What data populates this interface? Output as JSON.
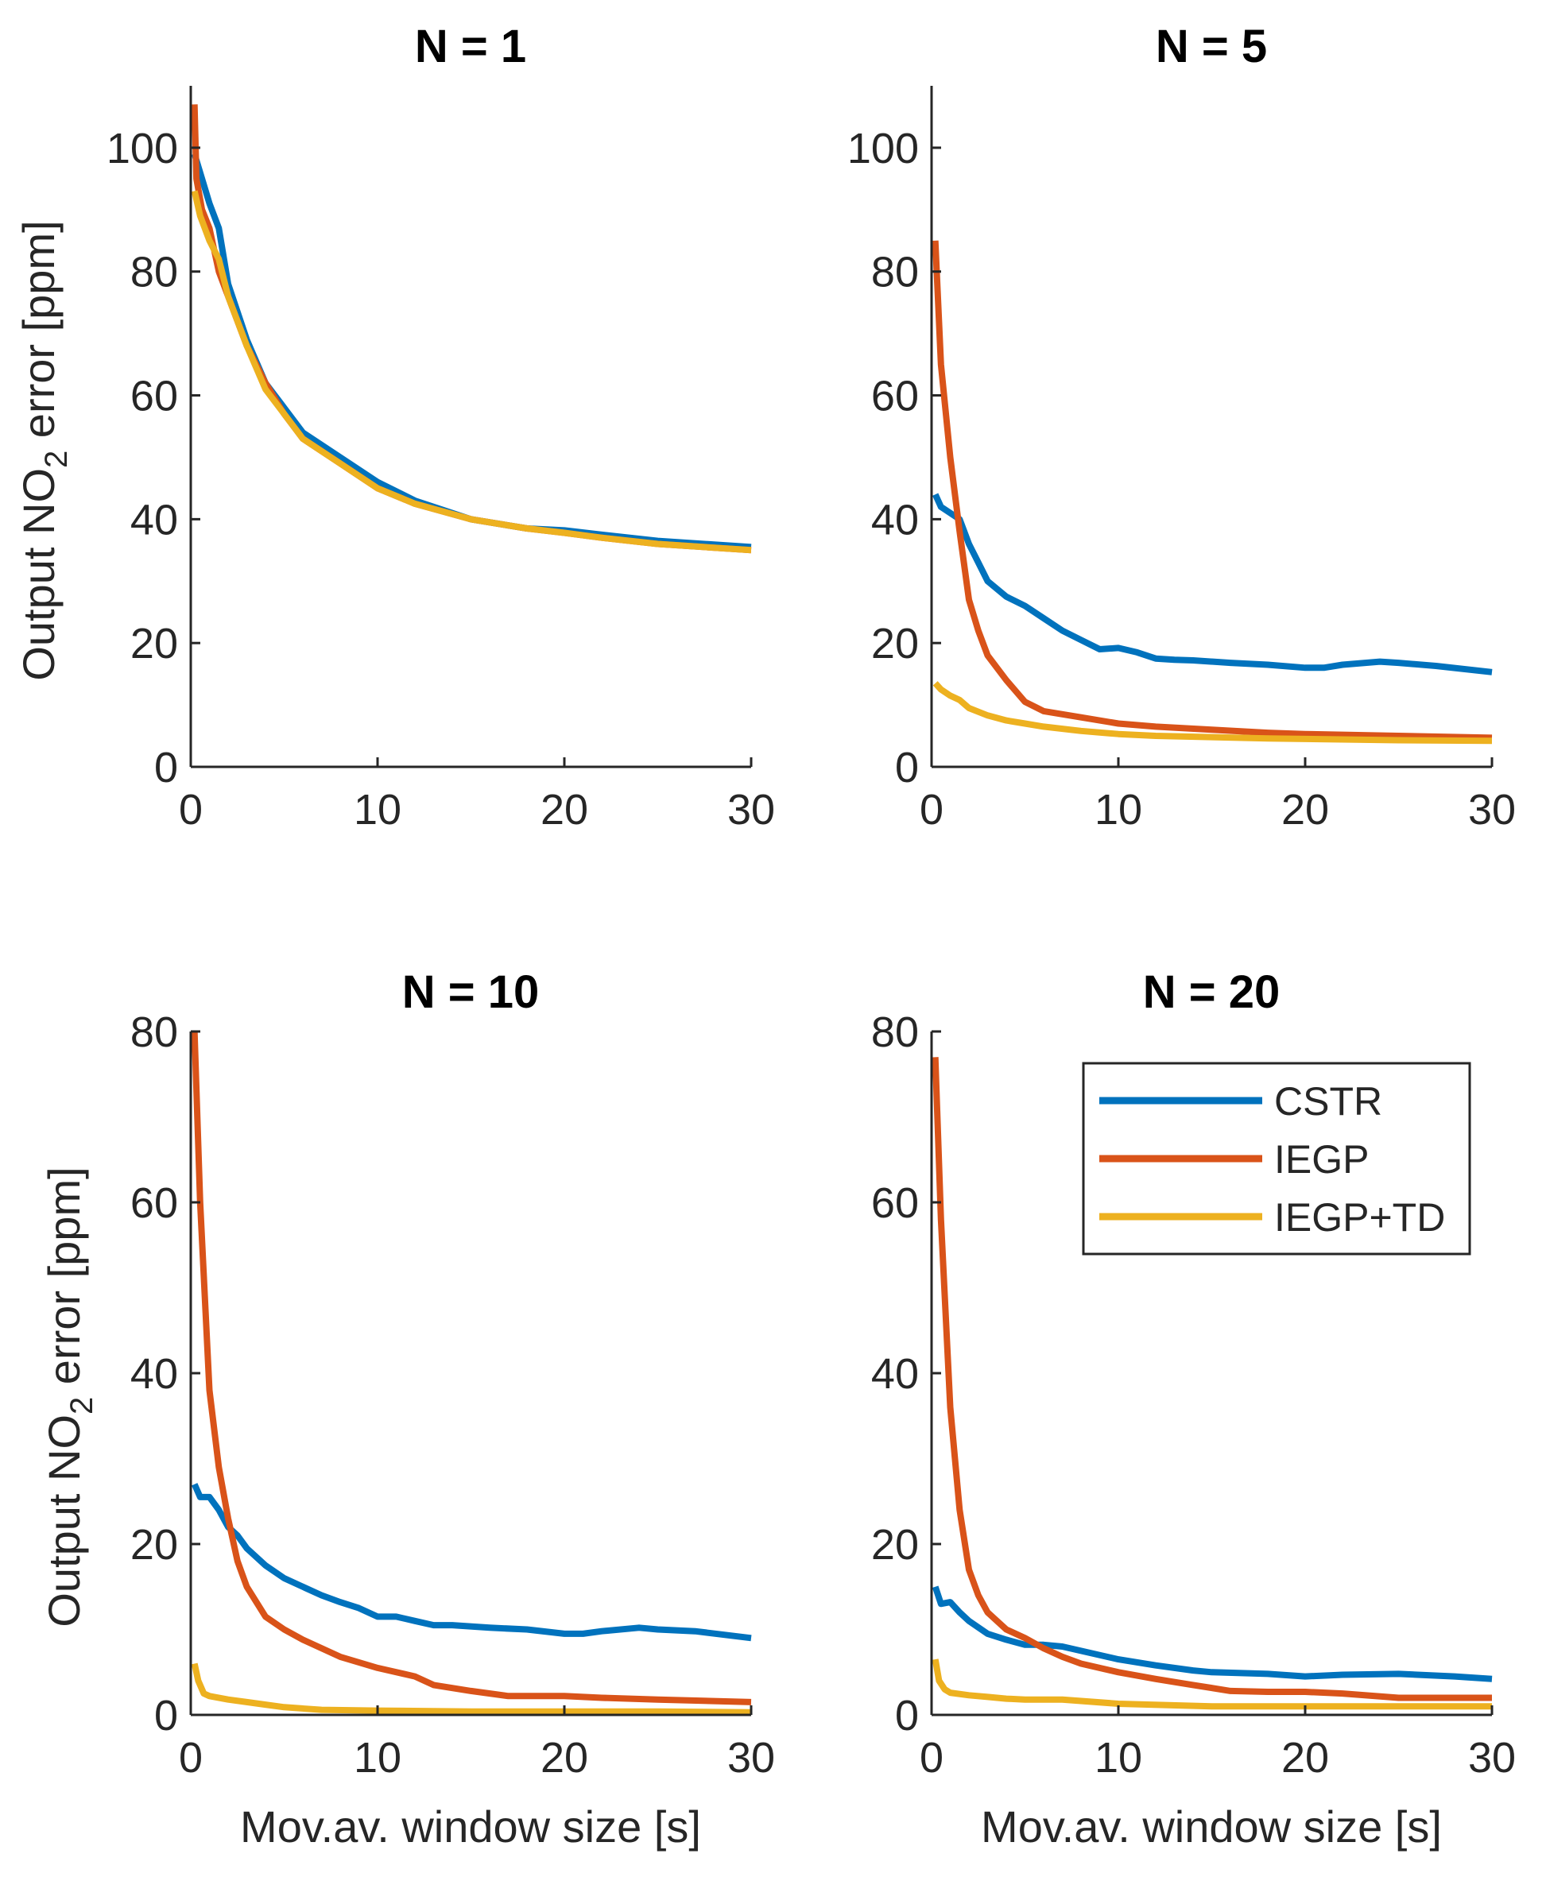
{
  "colors": {
    "CSTR": "#0072BD",
    "IEGP": "#D95319",
    "IEGP+TD": "#EDB120",
    "axis": "#262626"
  },
  "labels": {
    "ylabel_prefix": "Output NO",
    "ylabel_subscript": "2",
    "ylabel_suffix": " error [ppm]",
    "xlabel": "Mov.av. window size [s]"
  },
  "legend": {
    "placement": "top-right of bottom-right panel",
    "entries": [
      "CSTR",
      "IEGP",
      "IEGP+TD"
    ]
  },
  "chart_data": [
    {
      "type": "line",
      "title": "N = 1",
      "xlabel": "",
      "ylabel": "Output NO2 error [ppm]",
      "xlim": [
        0,
        30
      ],
      "ylim": [
        0,
        110
      ],
      "xticks": [
        0,
        10,
        20,
        30
      ],
      "yticks": [
        0,
        20,
        40,
        60,
        80,
        100
      ],
      "grid": false,
      "series": [
        {
          "name": "CSTR",
          "x": [
            0.2,
            1,
            1.5,
            2,
            3,
            4,
            5,
            6,
            8,
            10,
            12,
            15,
            18,
            20,
            22,
            25,
            30
          ],
          "values": [
            99,
            91,
            87,
            78,
            69,
            62,
            58,
            54,
            50,
            46,
            43,
            40,
            38.5,
            38.2,
            37.5,
            36.5,
            35.5
          ]
        },
        {
          "name": "IEGP",
          "x": [
            0.2,
            0.3,
            0.6,
            1,
            1.5,
            2,
            3,
            4,
            5,
            6,
            8,
            10,
            12,
            15,
            18,
            20,
            22,
            25,
            30
          ],
          "values": [
            107,
            95,
            90,
            87,
            80,
            76,
            68,
            62,
            57,
            53,
            49,
            45,
            42.5,
            40,
            38.5,
            37.8,
            37,
            36,
            35
          ]
        },
        {
          "name": "IEGP+TD",
          "x": [
            0.2,
            0.5,
            1,
            1.5,
            2,
            3,
            4,
            5,
            6,
            8,
            10,
            12,
            15,
            18,
            20,
            22,
            25,
            30
          ],
          "values": [
            93,
            89,
            85,
            82,
            76,
            68,
            61,
            57,
            53,
            49,
            45,
            42.5,
            40,
            38.5,
            37.8,
            37,
            36,
            35
          ]
        }
      ]
    },
    {
      "type": "line",
      "title": "N = 5",
      "xlabel": "",
      "ylabel": "",
      "xlim": [
        0,
        30
      ],
      "ylim": [
        0,
        110
      ],
      "xticks": [
        0,
        10,
        20,
        30
      ],
      "yticks": [
        0,
        20,
        40,
        60,
        80,
        100
      ],
      "grid": false,
      "series": [
        {
          "name": "CSTR",
          "x": [
            0.2,
            0.5,
            1,
            1.5,
            2,
            2.5,
            3,
            4,
            5,
            6,
            7,
            8,
            9,
            10,
            11,
            12,
            13,
            14,
            16,
            18,
            20,
            21,
            22,
            24,
            25,
            27,
            30
          ],
          "values": [
            44,
            42,
            41,
            40,
            36,
            33,
            30,
            27.5,
            26,
            24,
            22,
            20.5,
            19,
            19.2,
            18.5,
            17.5,
            17.3,
            17.2,
            16.8,
            16.5,
            16,
            16,
            16.5,
            17,
            16.8,
            16.3,
            15.3
          ]
        },
        {
          "name": "IEGP",
          "x": [
            0.2,
            0.5,
            1,
            1.5,
            2,
            2.5,
            3,
            4,
            5,
            6,
            8,
            10,
            12,
            15,
            18,
            20,
            25,
            30
          ],
          "values": [
            85,
            65,
            50,
            38,
            27,
            22,
            18,
            14,
            10.5,
            9,
            8,
            7,
            6.5,
            6,
            5.5,
            5.3,
            5,
            4.7
          ]
        },
        {
          "name": "IEGP+TD",
          "x": [
            0.2,
            0.5,
            1,
            1.5,
            2,
            3,
            4,
            5,
            6,
            8,
            10,
            12,
            15,
            18,
            20,
            25,
            30
          ],
          "values": [
            13.5,
            12.5,
            11.5,
            10.8,
            9.5,
            8.3,
            7.5,
            7,
            6.5,
            5.8,
            5.3,
            5,
            4.8,
            4.6,
            4.5,
            4.3,
            4.2
          ]
        }
      ]
    },
    {
      "type": "line",
      "title": "N = 10",
      "xlabel": "Mov.av. window size [s]",
      "ylabel": "Output NO2 error [ppm]",
      "xlim": [
        0,
        30
      ],
      "ylim": [
        0,
        80
      ],
      "xticks": [
        0,
        10,
        20,
        30
      ],
      "yticks": [
        0,
        20,
        40,
        60,
        80
      ],
      "grid": false,
      "series": [
        {
          "name": "CSTR",
          "x": [
            0.2,
            0.5,
            1,
            1.5,
            2,
            2.5,
            3,
            4,
            5,
            6,
            7,
            8,
            9,
            10,
            11,
            12,
            13,
            14,
            16,
            18,
            20,
            21,
            22,
            24,
            25,
            27,
            30
          ],
          "values": [
            27,
            25.5,
            25.5,
            24,
            22,
            21,
            19.5,
            17.5,
            16,
            15,
            14,
            13.2,
            12.5,
            11.5,
            11.5,
            11,
            10.5,
            10.5,
            10.2,
            10,
            9.5,
            9.5,
            9.8,
            10.2,
            10,
            9.8,
            9
          ]
        },
        {
          "name": "IEGP",
          "x": [
            0.2,
            0.5,
            1,
            1.5,
            2,
            2.5,
            3,
            4,
            5,
            6,
            8,
            10,
            12,
            13,
            15,
            17,
            20,
            22,
            25,
            30
          ],
          "values": [
            80,
            60,
            38,
            29,
            23,
            18,
            15,
            11.5,
            10,
            8.8,
            6.8,
            5.5,
            4.5,
            3.5,
            2.8,
            2.2,
            2.2,
            2,
            1.8,
            1.5
          ]
        },
        {
          "name": "IEGP+TD",
          "x": [
            0.2,
            0.4,
            0.7,
            1,
            2,
            3,
            4,
            5,
            7,
            10,
            15,
            20,
            25,
            30
          ],
          "values": [
            6,
            4,
            2.5,
            2.2,
            1.8,
            1.5,
            1.2,
            0.9,
            0.6,
            0.5,
            0.4,
            0.4,
            0.4,
            0.3
          ]
        }
      ]
    },
    {
      "type": "line",
      "title": "N = 20",
      "xlabel": "Mov.av. window size [s]",
      "ylabel": "",
      "xlim": [
        0,
        30
      ],
      "ylim": [
        0,
        80
      ],
      "xticks": [
        0,
        10,
        20,
        30
      ],
      "yticks": [
        0,
        20,
        40,
        60,
        80
      ],
      "grid": false,
      "series": [
        {
          "name": "CSTR",
          "x": [
            0.2,
            0.5,
            1,
            1.5,
            2,
            3,
            4,
            5,
            6,
            7,
            8,
            10,
            12,
            14,
            15,
            18,
            20,
            22,
            25,
            28,
            30
          ],
          "values": [
            15,
            13,
            13.2,
            12,
            11,
            9.5,
            8.8,
            8.2,
            8.2,
            8,
            7.5,
            6.5,
            5.8,
            5.2,
            5,
            4.8,
            4.5,
            4.7,
            4.8,
            4.5,
            4.2
          ]
        },
        {
          "name": "IEGP",
          "x": [
            0.2,
            0.5,
            1,
            1.5,
            2,
            2.5,
            3,
            4,
            5,
            6,
            7,
            8,
            10,
            12,
            14,
            16,
            18,
            20,
            22,
            25,
            30
          ],
          "values": [
            77,
            58,
            36,
            24,
            17,
            14,
            12,
            10,
            9,
            7.8,
            6.8,
            6,
            5,
            4.2,
            3.5,
            2.8,
            2.7,
            2.7,
            2.5,
            2,
            2
          ]
        },
        {
          "name": "IEGP+TD",
          "x": [
            0.2,
            0.4,
            0.7,
            1,
            2,
            3,
            4,
            5,
            7,
            10,
            15,
            20,
            25,
            30
          ],
          "values": [
            6.5,
            4,
            3,
            2.6,
            2.3,
            2.1,
            1.9,
            1.8,
            1.8,
            1.3,
            1,
            1,
            1,
            1
          ]
        }
      ]
    }
  ]
}
